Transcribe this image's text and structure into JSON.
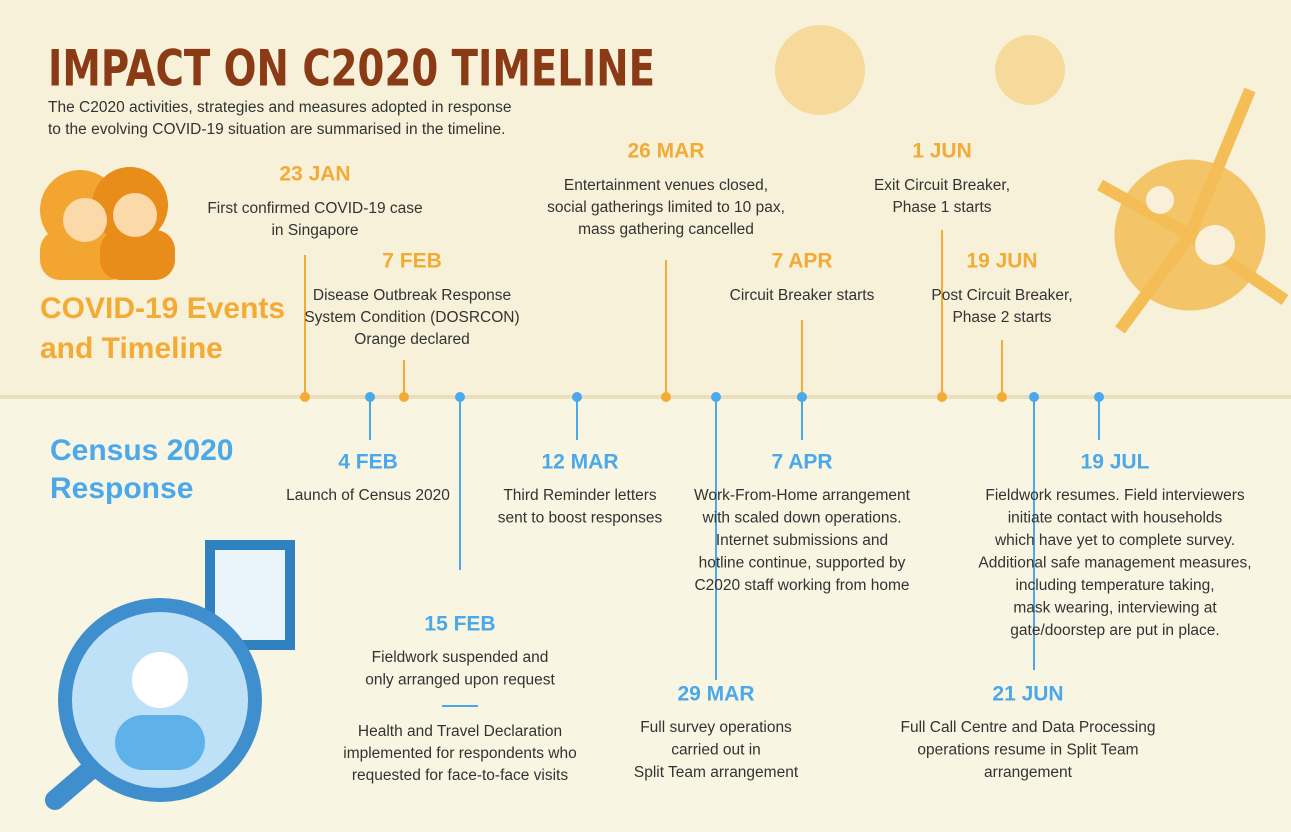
{
  "header": {
    "title": "IMPACT ON C2020 TIMELINE",
    "subtitle_lines": [
      "The C2020 activities, strategies and measures adopted in response",
      "to the evolving COVID-19 situation are summarised in the timeline."
    ]
  },
  "sections": {
    "events": [
      "COVID-19 Events",
      "and Timeline"
    ],
    "response": [
      "Census 2020",
      "Response"
    ]
  },
  "events": [
    {
      "date": "23 JAN",
      "lines": [
        "First confirmed COVID-19 case",
        "in Singapore"
      ]
    },
    {
      "date": "7 FEB",
      "lines": [
        "Disease Outbreak Response",
        "System Condition (DOSRCON)",
        "Orange declared"
      ]
    },
    {
      "date": "26 MAR",
      "lines": [
        "Entertainment venues closed,",
        "social gatherings limited to 10 pax,",
        "mass gathering cancelled"
      ]
    },
    {
      "date": "7 APR",
      "lines": [
        "Circuit Breaker starts"
      ]
    },
    {
      "date": "1 JUN",
      "lines": [
        "Exit Circuit Breaker,",
        "Phase 1 starts"
      ]
    },
    {
      "date": "19 JUN",
      "lines": [
        "Post Circuit Breaker,",
        "Phase 2 starts"
      ]
    }
  ],
  "responses": [
    {
      "date": "4 FEB",
      "lines": [
        "Launch of Census 2020"
      ]
    },
    {
      "date": "15 FEB",
      "lines": [
        "Fieldwork suspended and",
        "only arranged upon request"
      ],
      "notes": [
        "Health and Travel Declaration",
        "implemented for respondents who",
        "requested for face-to-face visits"
      ]
    },
    {
      "date": "12 MAR",
      "lines": [
        "Third Reminder letters",
        "sent to boost responses"
      ]
    },
    {
      "date": "29 MAR",
      "lines": [
        "Full survey operations",
        "carried out in",
        "Split Team arrangement"
      ]
    },
    {
      "date": "7 APR",
      "lines": [
        "Work-From-Home arrangement",
        "with scaled down operations.",
        "Internet submissions and",
        "hotline continue, supported by",
        "C2020 staff working from home"
      ]
    },
    {
      "date": "21 JUN",
      "lines": [
        "Full Call Centre and Data Processing",
        "operations resume in Split Team",
        "arrangement"
      ]
    },
    {
      "date": "19 JUL",
      "lines": [
        "Fieldwork resumes. Field interviewers",
        "initiate contact with households",
        "which have yet to complete survey.",
        "Additional safe management measures,",
        "including temperature taking,",
        "mask wearing, interviewing at",
        "gate/doorstep are put in place."
      ]
    }
  ]
}
